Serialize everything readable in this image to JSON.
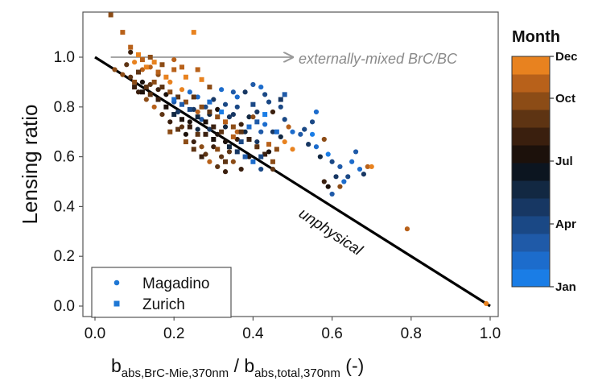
{
  "chart_data": {
    "type": "scatter",
    "ylabel": "Lensing ratio",
    "xlabel": {
      "base1": "b",
      "sub1": "abs,BrC-Mie,370nm",
      "sep": " / ",
      "base2": "b",
      "sub2": "abs,total,370nm",
      "unit": " (-)"
    },
    "xlim": [
      0.0,
      1.0
    ],
    "ylim": [
      -0.12,
      1.18
    ],
    "x_ticks": [
      "0.0",
      "0.2",
      "0.4",
      "0.6",
      "0.8",
      "1.0"
    ],
    "y_ticks": [
      "0.0",
      "0.2",
      "0.4",
      "0.6",
      "0.8",
      "1.0"
    ],
    "reference_line": {
      "x": [
        0.0,
        1.0
      ],
      "y": [
        1.0,
        0.0
      ],
      "color": "#000000"
    },
    "annotations": {
      "arrow_label": "externally-mixed BrC/BC",
      "arrow": {
        "x": [
          0.04,
          0.5
        ],
        "y": [
          1.0,
          1.0
        ],
        "color": "#999999"
      },
      "line_label": "unphysical",
      "line_label_anchor": {
        "x": 0.6,
        "y": 0.39
      }
    },
    "legend": {
      "position": "bottom-left",
      "entries": [
        {
          "label": "Magadino",
          "marker": "circle",
          "color": "#1f77d4"
        },
        {
          "label": "Zurich",
          "marker": "square",
          "color": "#1f77d4"
        }
      ]
    },
    "colorbar": {
      "title": "Month",
      "labels": [
        "Jan",
        "Apr",
        "Jul",
        "Oct",
        "Dec"
      ],
      "label_months": [
        1,
        4,
        7,
        10,
        12
      ],
      "colors": [
        "#1a7de6",
        "#1c6ccc",
        "#1f5aa8",
        "#1a4885",
        "#173763",
        "#122842",
        "#0c1520",
        "#1c110b",
        "#3a1f0e",
        "#5e3413",
        "#8c4c16",
        "#b8611a",
        "#e8821f"
      ]
    },
    "series": [
      {
        "name": "Magadino",
        "marker": "circle",
        "points": [
          [
            0.24,
            0.86,
            2
          ],
          [
            0.26,
            0.84,
            2
          ],
          [
            0.25,
            0.79,
            5
          ],
          [
            0.3,
            0.83,
            5
          ],
          [
            0.32,
            0.87,
            2
          ],
          [
            0.35,
            0.86,
            3
          ],
          [
            0.36,
            0.84,
            2
          ],
          [
            0.38,
            0.86,
            5
          ],
          [
            0.4,
            0.89,
            3
          ],
          [
            0.42,
            0.88,
            2
          ],
          [
            0.43,
            0.85,
            4
          ],
          [
            0.44,
            0.82,
            4
          ],
          [
            0.41,
            0.78,
            5
          ],
          [
            0.39,
            0.76,
            6
          ],
          [
            0.37,
            0.73,
            8
          ],
          [
            0.36,
            0.8,
            4
          ],
          [
            0.34,
            0.76,
            5
          ],
          [
            0.33,
            0.72,
            6
          ],
          [
            0.31,
            0.69,
            7
          ],
          [
            0.29,
            0.71,
            5
          ],
          [
            0.27,
            0.75,
            3
          ],
          [
            0.28,
            0.8,
            4
          ],
          [
            0.47,
            0.8,
            4
          ],
          [
            0.48,
            0.75,
            4
          ],
          [
            0.49,
            0.72,
            11
          ],
          [
            0.47,
            0.68,
            6
          ],
          [
            0.5,
            0.7,
            2
          ],
          [
            0.52,
            0.69,
            3
          ],
          [
            0.53,
            0.71,
            4
          ],
          [
            0.55,
            0.69,
            1
          ],
          [
            0.54,
            0.65,
            5
          ],
          [
            0.56,
            0.64,
            2
          ],
          [
            0.57,
            0.6,
            6
          ],
          [
            0.59,
            0.61,
            1
          ],
          [
            0.6,
            0.58,
            4
          ],
          [
            0.62,
            0.56,
            3
          ],
          [
            0.61,
            0.52,
            5
          ],
          [
            0.63,
            0.5,
            2
          ],
          [
            0.58,
            0.5,
            8
          ],
          [
            0.59,
            0.48,
            7
          ],
          [
            0.6,
            0.45,
            3
          ],
          [
            0.62,
            0.48,
            10
          ],
          [
            0.64,
            0.52,
            4
          ],
          [
            0.65,
            0.58,
            2
          ],
          [
            0.66,
            0.62,
            3
          ],
          [
            0.67,
            0.55,
            2
          ],
          [
            0.68,
            0.53,
            5
          ],
          [
            0.69,
            0.56,
            11
          ],
          [
            0.7,
            0.56,
            12
          ],
          [
            0.56,
            0.78,
            2
          ],
          [
            0.55,
            0.74,
            4
          ],
          [
            0.58,
            0.67,
            10
          ],
          [
            0.45,
            0.78,
            8
          ],
          [
            0.43,
            0.73,
            2
          ],
          [
            0.42,
            0.7,
            3
          ],
          [
            0.45,
            0.7,
            5
          ],
          [
            0.4,
            0.76,
            10
          ],
          [
            0.38,
            0.7,
            6
          ],
          [
            0.36,
            0.67,
            8
          ],
          [
            0.34,
            0.62,
            9
          ],
          [
            0.33,
            0.66,
            7
          ],
          [
            0.3,
            0.64,
            8
          ],
          [
            0.32,
            0.6,
            9
          ],
          [
            0.35,
            0.58,
            10
          ],
          [
            0.37,
            0.55,
            8
          ],
          [
            0.39,
            0.6,
            7
          ],
          [
            0.41,
            0.66,
            5
          ],
          [
            0.44,
            0.62,
            7
          ],
          [
            0.45,
            0.55,
            9
          ],
          [
            0.42,
            0.55,
            4
          ],
          [
            0.2,
            0.82,
            3
          ],
          [
            0.21,
            0.78,
            5
          ],
          [
            0.18,
            0.85,
            7
          ],
          [
            0.16,
            0.87,
            8
          ],
          [
            0.14,
            0.89,
            9
          ],
          [
            0.12,
            0.9,
            7
          ],
          [
            0.11,
            0.86,
            8
          ],
          [
            0.13,
            0.83,
            10
          ],
          [
            0.15,
            0.8,
            11
          ],
          [
            0.17,
            0.77,
            9
          ],
          [
            0.19,
            0.74,
            8
          ],
          [
            0.22,
            0.72,
            9
          ],
          [
            0.23,
            0.69,
            7
          ],
          [
            0.25,
            0.66,
            8
          ],
          [
            0.27,
            0.64,
            10
          ],
          [
            0.28,
            0.61,
            9
          ],
          [
            0.29,
            0.58,
            11
          ],
          [
            0.31,
            0.56,
            9
          ],
          [
            0.33,
            0.54,
            8
          ],
          [
            0.26,
            0.71,
            6
          ],
          [
            0.24,
            0.74,
            7
          ],
          [
            0.29,
            0.77,
            6
          ],
          [
            0.31,
            0.79,
            7
          ],
          [
            0.33,
            0.81,
            4
          ],
          [
            0.35,
            0.77,
            5
          ],
          [
            0.09,
            0.92,
            9
          ],
          [
            0.1,
            0.98,
            12
          ],
          [
            0.12,
            0.95,
            11
          ],
          [
            0.14,
            0.96,
            11
          ],
          [
            0.16,
            0.93,
            10
          ],
          [
            0.2,
            0.99,
            11
          ],
          [
            0.08,
            0.97,
            9
          ],
          [
            0.07,
            0.93,
            10
          ],
          [
            0.05,
            0.95,
            10
          ],
          [
            0.09,
            1.02,
            8
          ],
          [
            0.48,
            0.66,
            12
          ],
          [
            0.5,
            0.63,
            12
          ],
          [
            0.79,
            0.31,
            11
          ],
          [
            0.99,
            0.01,
            12
          ],
          [
            0.36,
            0.7,
            11
          ],
          [
            0.41,
            0.64,
            12
          ],
          [
            0.26,
            0.78,
            11
          ],
          [
            0.22,
            0.87,
            12
          ],
          [
            0.19,
            0.9,
            12
          ]
        ]
      },
      {
        "name": "Zurich",
        "marker": "square",
        "points": [
          [
            0.04,
            1.17,
            10
          ],
          [
            0.07,
            1.1,
            11
          ],
          [
            0.25,
            1.1,
            12
          ],
          [
            0.09,
            1.04,
            11
          ],
          [
            0.11,
            1.01,
            12
          ],
          [
            0.12,
            0.99,
            11
          ],
          [
            0.13,
            0.96,
            12
          ],
          [
            0.14,
            1.0,
            10
          ],
          [
            0.15,
            0.98,
            12
          ],
          [
            0.16,
            0.94,
            11
          ],
          [
            0.17,
            0.97,
            10
          ],
          [
            0.18,
            0.92,
            12
          ],
          [
            0.2,
            0.95,
            11
          ],
          [
            0.22,
            0.96,
            11
          ],
          [
            0.23,
            0.92,
            12
          ],
          [
            0.26,
            0.95,
            11
          ],
          [
            0.27,
            0.91,
            12
          ],
          [
            0.29,
            0.88,
            10
          ],
          [
            0.1,
            0.9,
            10
          ],
          [
            0.11,
            0.94,
            9
          ],
          [
            0.13,
            0.88,
            9
          ],
          [
            0.15,
            0.9,
            10
          ],
          [
            0.17,
            0.88,
            9
          ],
          [
            0.19,
            0.86,
            10
          ],
          [
            0.21,
            0.84,
            9
          ],
          [
            0.23,
            0.82,
            10
          ],
          [
            0.25,
            0.84,
            9
          ],
          [
            0.27,
            0.8,
            10
          ],
          [
            0.29,
            0.78,
            9
          ],
          [
            0.31,
            0.76,
            10
          ],
          [
            0.33,
            0.74,
            11
          ],
          [
            0.35,
            0.72,
            10
          ],
          [
            0.37,
            0.7,
            9
          ],
          [
            0.39,
            0.67,
            8
          ],
          [
            0.41,
            0.64,
            9
          ],
          [
            0.43,
            0.61,
            8
          ],
          [
            0.45,
            0.58,
            10
          ],
          [
            0.44,
            0.65,
            11
          ],
          [
            0.46,
            0.63,
            10
          ],
          [
            0.32,
            0.7,
            9
          ],
          [
            0.3,
            0.72,
            8
          ],
          [
            0.28,
            0.74,
            7
          ],
          [
            0.26,
            0.76,
            6
          ],
          [
            0.24,
            0.79,
            4
          ],
          [
            0.22,
            0.81,
            3
          ],
          [
            0.2,
            0.83,
            2
          ],
          [
            0.18,
            0.8,
            7
          ],
          [
            0.16,
            0.83,
            8
          ],
          [
            0.14,
            0.85,
            9
          ],
          [
            0.12,
            0.86,
            7
          ],
          [
            0.1,
            0.88,
            8
          ],
          [
            0.34,
            0.64,
            6
          ],
          [
            0.36,
            0.62,
            5
          ],
          [
            0.38,
            0.6,
            3
          ],
          [
            0.4,
            0.58,
            2
          ],
          [
            0.42,
            0.6,
            4
          ],
          [
            0.37,
            0.66,
            4
          ],
          [
            0.3,
            0.67,
            7
          ],
          [
            0.28,
            0.69,
            8
          ],
          [
            0.26,
            0.69,
            9
          ],
          [
            0.24,
            0.72,
            8
          ],
          [
            0.22,
            0.75,
            7
          ],
          [
            0.2,
            0.77,
            6
          ],
          [
            0.21,
            0.71,
            9
          ],
          [
            0.19,
            0.7,
            10
          ],
          [
            0.23,
            0.66,
            10
          ],
          [
            0.25,
            0.63,
            9
          ],
          [
            0.27,
            0.6,
            8
          ],
          [
            0.31,
            0.63,
            10
          ],
          [
            0.33,
            0.58,
            9
          ],
          [
            0.35,
            0.68,
            11
          ],
          [
            0.39,
            0.72,
            2
          ],
          [
            0.41,
            0.74,
            3
          ],
          [
            0.43,
            0.77,
            1
          ],
          [
            0.46,
            0.7,
            2
          ],
          [
            0.48,
            0.85,
            3
          ],
          [
            0.47,
            0.83,
            5
          ],
          [
            0.29,
            0.82,
            2
          ],
          [
            0.32,
            0.78,
            1
          ],
          [
            0.4,
            0.81,
            4
          ]
        ]
      }
    ]
  }
}
